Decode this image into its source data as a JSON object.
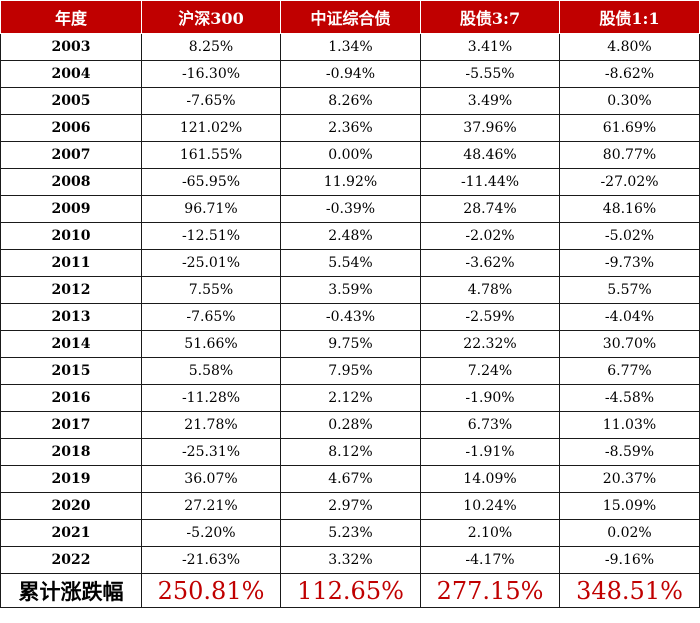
{
  "header": [
    "年度",
    "沪深300",
    "中证综合债",
    "股债3:7",
    "股债1:1"
  ],
  "rows": [
    [
      "2003",
      "8.25%",
      "1.34%",
      "3.41%",
      "4.80%"
    ],
    [
      "2004",
      "-16.30%",
      "-0.94%",
      "-5.55%",
      "-8.62%"
    ],
    [
      "2005",
      "-7.65%",
      "8.26%",
      "3.49%",
      "0.30%"
    ],
    [
      "2006",
      "121.02%",
      "2.36%",
      "37.96%",
      "61.69%"
    ],
    [
      "2007",
      "161.55%",
      "0.00%",
      "48.46%",
      "80.77%"
    ],
    [
      "2008",
      "-65.95%",
      "11.92%",
      "-11.44%",
      "-27.02%"
    ],
    [
      "2009",
      "96.71%",
      "-0.39%",
      "28.74%",
      "48.16%"
    ],
    [
      "2010",
      "-12.51%",
      "2.48%",
      "-2.02%",
      "-5.02%"
    ],
    [
      "2011",
      "-25.01%",
      "5.54%",
      "-3.62%",
      "-9.73%"
    ],
    [
      "2012",
      "7.55%",
      "3.59%",
      "4.78%",
      "5.57%"
    ],
    [
      "2013",
      "-7.65%",
      "-0.43%",
      "-2.59%",
      "-4.04%"
    ],
    [
      "2014",
      "51.66%",
      "9.75%",
      "22.32%",
      "30.70%"
    ],
    [
      "2015",
      "5.58%",
      "7.95%",
      "7.24%",
      "6.77%"
    ],
    [
      "2016",
      "-11.28%",
      "2.12%",
      "-1.90%",
      "-4.58%"
    ],
    [
      "2017",
      "21.78%",
      "0.28%",
      "6.73%",
      "11.03%"
    ],
    [
      "2018",
      "-25.31%",
      "8.12%",
      "-1.91%",
      "-8.59%"
    ],
    [
      "2019",
      "36.07%",
      "4.67%",
      "14.09%",
      "20.37%"
    ],
    [
      "2020",
      "27.21%",
      "2.97%",
      "10.24%",
      "15.09%"
    ],
    [
      "2021",
      "-5.20%",
      "5.23%",
      "2.10%",
      "0.02%"
    ],
    [
      "2022",
      "-21.63%",
      "3.32%",
      "-4.17%",
      "-9.16%"
    ]
  ],
  "total": [
    "累计涨跌幅",
    "250.81%",
    "112.65%",
    "277.15%",
    "348.51%"
  ],
  "colors": {
    "header_bg": "#c00000",
    "header_text": "#ffffff",
    "total_value": "#c00000"
  }
}
